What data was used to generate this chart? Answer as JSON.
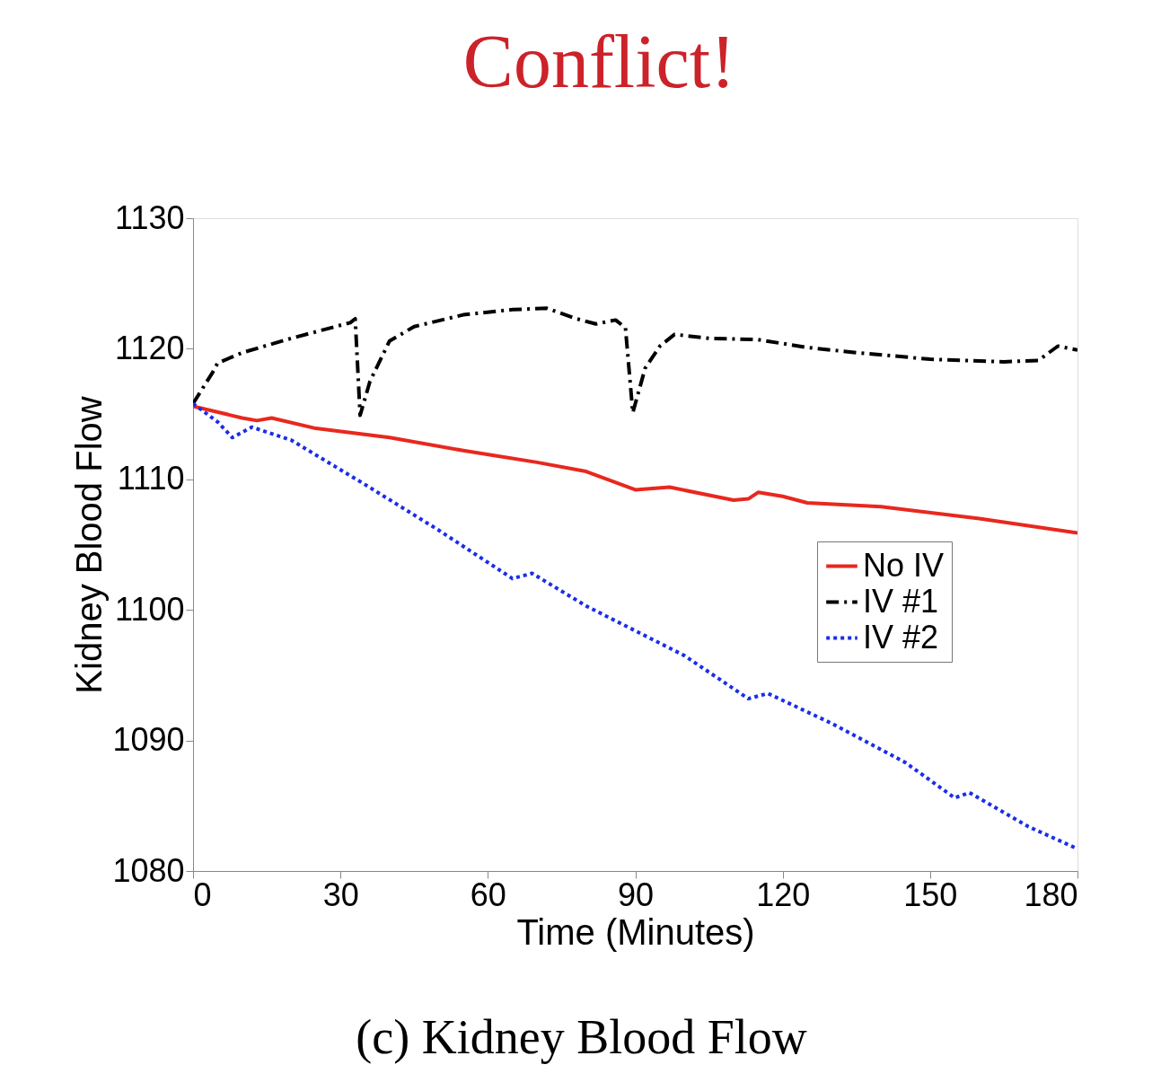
{
  "chart_data": {
    "type": "line",
    "title": "Conflict!",
    "xlabel": "Time (Minutes)",
    "ylabel": "Kidney Blood Flow",
    "annotations": [
      "(c)  Kidney Blood Flow"
    ],
    "xlim": [
      0,
      180
    ],
    "xticks": [
      0,
      30,
      60,
      90,
      120,
      150,
      180
    ],
    "ylim": [
      1080,
      1130
    ],
    "yticks": [
      1080,
      1090,
      1100,
      1110,
      1120,
      1130
    ],
    "grid": false,
    "legend": "right",
    "marker": "none",
    "series": [
      {
        "name": "No IV",
        "color": "#e8281e",
        "line_style": "solid",
        "x": [
          0,
          10,
          13,
          16,
          25,
          40,
          55,
          70,
          80,
          90,
          97,
          110,
          113,
          115,
          120,
          125,
          140,
          160,
          180
        ],
        "values": [
          1115.6,
          1114.7,
          1114.5,
          1114.7,
          1113.9,
          1113.2,
          1112.2,
          1111.3,
          1110.6,
          1109.2,
          1109.4,
          1108.4,
          1108.5,
          1109.0,
          1108.7,
          1108.2,
          1107.9,
          1107.0,
          1105.9
        ]
      },
      {
        "name": "IV #1",
        "color": "#000000",
        "line_style": "dashed",
        "x": [
          0,
          4,
          5,
          10,
          20,
          32,
          33,
          34,
          36,
          40,
          45,
          55,
          65,
          72,
          78,
          82,
          86,
          88,
          89.5,
          92,
          95,
          98,
          105,
          115,
          125,
          135,
          150,
          165,
          172,
          176,
          180
        ],
        "values": [
          1115.8,
          1118.2,
          1118.9,
          1119.7,
          1120.8,
          1122.0,
          1122.3,
          1114.9,
          1117.5,
          1120.6,
          1121.7,
          1122.6,
          1123.0,
          1123.1,
          1122.3,
          1121.9,
          1122.2,
          1121.6,
          1115.1,
          1118.5,
          1120.2,
          1121.1,
          1120.8,
          1120.7,
          1120.1,
          1119.7,
          1119.2,
          1119.0,
          1119.1,
          1120.2,
          1119.9
        ]
      },
      {
        "name": "IV #2",
        "color": "#1a2ee8",
        "line_style": "dotted",
        "x": [
          0,
          5,
          8,
          12,
          20,
          35,
          50,
          65,
          69,
          80,
          100,
          113,
          117,
          130,
          145,
          155,
          158,
          170,
          180
        ],
        "values": [
          1115.8,
          1114.4,
          1113.2,
          1114.0,
          1113.0,
          1109.6,
          1106.1,
          1102.4,
          1102.8,
          1100.3,
          1096.5,
          1093.2,
          1093.6,
          1091.3,
          1088.3,
          1085.6,
          1086.0,
          1083.4,
          1081.7
        ]
      }
    ]
  }
}
